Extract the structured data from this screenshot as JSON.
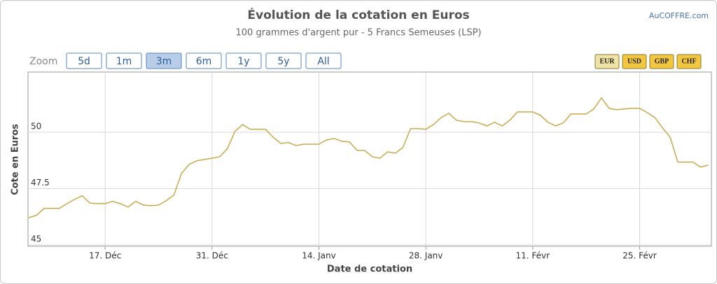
{
  "chart_data": {
    "type": "line",
    "title": "Évolution de la cotation en Euros",
    "subtitle": "100 grammes d'argent pur - 5 Francs Semeuses (LSP)",
    "x_label": "Date de cotation",
    "y_label": "Cote en Euros",
    "categories": [
      null,
      null,
      null,
      null,
      null,
      null,
      null,
      null,
      null,
      null,
      "17. Déc",
      null,
      null,
      null,
      null,
      null,
      null,
      null,
      null,
      null,
      null,
      null,
      null,
      null,
      "31. Déc",
      null,
      null,
      null,
      null,
      null,
      null,
      null,
      null,
      null,
      null,
      null,
      null,
      null,
      "14. Janv",
      null,
      null,
      null,
      null,
      null,
      null,
      null,
      null,
      null,
      null,
      null,
      null,
      null,
      "28. Janv",
      null,
      null,
      null,
      null,
      null,
      null,
      null,
      null,
      null,
      null,
      null,
      null,
      null,
      "11. Févr",
      null,
      null,
      null,
      null,
      null,
      null,
      null,
      null,
      null,
      null,
      null,
      null,
      null,
      "25. Févr",
      null,
      null,
      null,
      null,
      null,
      null,
      null,
      null,
      null
    ],
    "series": [
      {
        "color": "#c9a94e",
        "values": [
          46.21,
          46.31,
          46.62,
          46.62,
          46.62,
          46.83,
          47.02,
          47.18,
          46.86,
          46.83,
          46.83,
          46.93,
          46.83,
          46.68,
          46.93,
          46.77,
          46.74,
          46.77,
          46.96,
          47.21,
          48.17,
          48.57,
          48.73,
          48.79,
          48.85,
          48.91,
          49.26,
          50.03,
          50.34,
          50.13,
          50.13,
          50.13,
          49.78,
          49.5,
          49.54,
          49.41,
          49.47,
          49.47,
          49.47,
          49.66,
          49.72,
          49.6,
          49.57,
          49.19,
          49.19,
          48.91,
          48.85,
          49.13,
          49.07,
          49.32,
          50.16,
          50.16,
          50.13,
          50.34,
          50.65,
          50.84,
          50.53,
          50.47,
          50.47,
          50.41,
          50.28,
          50.44,
          50.28,
          50.53,
          50.9,
          50.9,
          50.9,
          50.75,
          50.44,
          50.28,
          50.41,
          50.81,
          50.81,
          50.81,
          51.03,
          51.52,
          51.06,
          51.0,
          51.03,
          51.06,
          51.06,
          50.87,
          50.65,
          50.19,
          49.78,
          48.67,
          48.67,
          48.67,
          48.45,
          48.54
        ]
      }
    ],
    "ylim": [
      44.94,
      52.67
    ],
    "yticks": [
      45,
      47.5,
      50
    ],
    "grid": true
  },
  "credit": "AuCOFFRE.com",
  "range_selector": {
    "label": "Zoom",
    "buttons": [
      "5d",
      "1m",
      "3m",
      "6m",
      "1y",
      "5y",
      "All"
    ],
    "selected": 2
  },
  "currency_selector": {
    "buttons": [
      "EUR",
      "USD",
      "GBP",
      "CHF"
    ],
    "selected": 0
  }
}
